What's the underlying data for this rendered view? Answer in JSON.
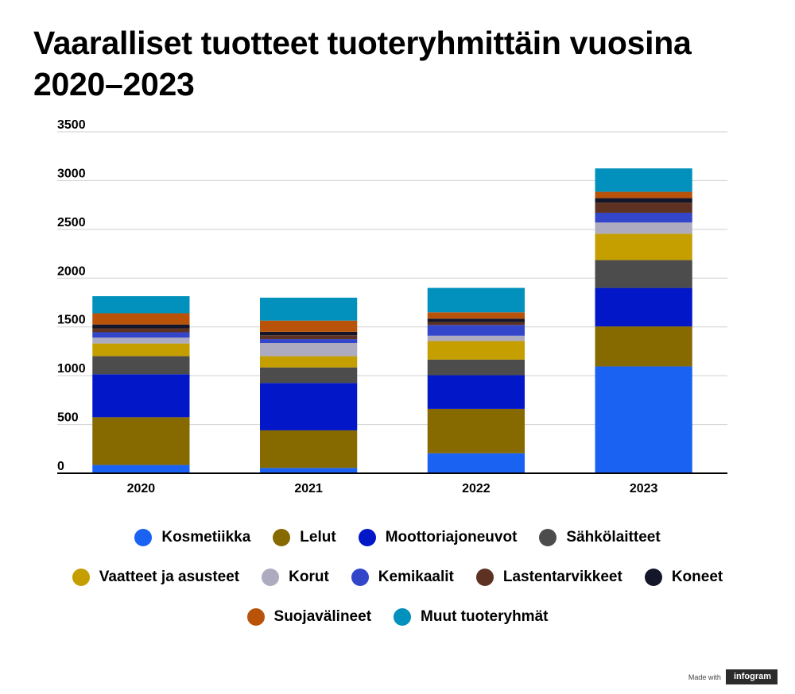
{
  "title": "Vaaralliset tuotteet tuoteryhmittäin vuosina 2020–2023",
  "chart_data": {
    "type": "bar",
    "stacked": true,
    "categories": [
      "2020",
      "2021",
      "2022",
      "2023"
    ],
    "ylim": [
      0,
      3500
    ],
    "yticks": [
      0,
      500,
      1000,
      1500,
      2000,
      2500,
      3000,
      3500
    ],
    "grid": true,
    "legend_position": "bottom",
    "series": [
      {
        "name": "Kosmetiikka",
        "color": "#1a62f2",
        "values": [
          85,
          55,
          205,
          1095
        ]
      },
      {
        "name": "Lelut",
        "color": "#866a00",
        "values": [
          490,
          385,
          455,
          410
        ]
      },
      {
        "name": "Moottoriajoneuvot",
        "color": "#0217c7",
        "values": [
          440,
          485,
          345,
          395
        ]
      },
      {
        "name": "Sähkölaitteet",
        "color": "#4c4c4c",
        "values": [
          185,
          160,
          160,
          285
        ]
      },
      {
        "name": "Vaatteet ja asusteet",
        "color": "#c59e00",
        "values": [
          130,
          115,
          190,
          270
        ]
      },
      {
        "name": "Korut",
        "color": "#adabbf",
        "values": [
          60,
          135,
          55,
          115
        ]
      },
      {
        "name": "Kemikaalit",
        "color": "#3345c9",
        "values": [
          55,
          40,
          110,
          100
        ]
      },
      {
        "name": "Lastentarvikkeet",
        "color": "#5d3222",
        "values": [
          40,
          40,
          30,
          105
        ]
      },
      {
        "name": "Koneet",
        "color": "#14162a",
        "values": [
          40,
          35,
          35,
          45
        ]
      },
      {
        "name": "Suojavälineet",
        "color": "#b9530a",
        "values": [
          115,
          115,
          65,
          65
        ]
      },
      {
        "name": "Muut tuoteryhmät",
        "color": "#0290bd",
        "values": [
          175,
          235,
          250,
          240
        ]
      }
    ]
  },
  "legend_rows": [
    [
      0,
      1,
      2,
      3
    ],
    [
      4,
      5,
      6,
      7,
      8
    ],
    [
      9,
      10
    ]
  ],
  "credit": {
    "text": "Made with",
    "logo": "infogram"
  }
}
